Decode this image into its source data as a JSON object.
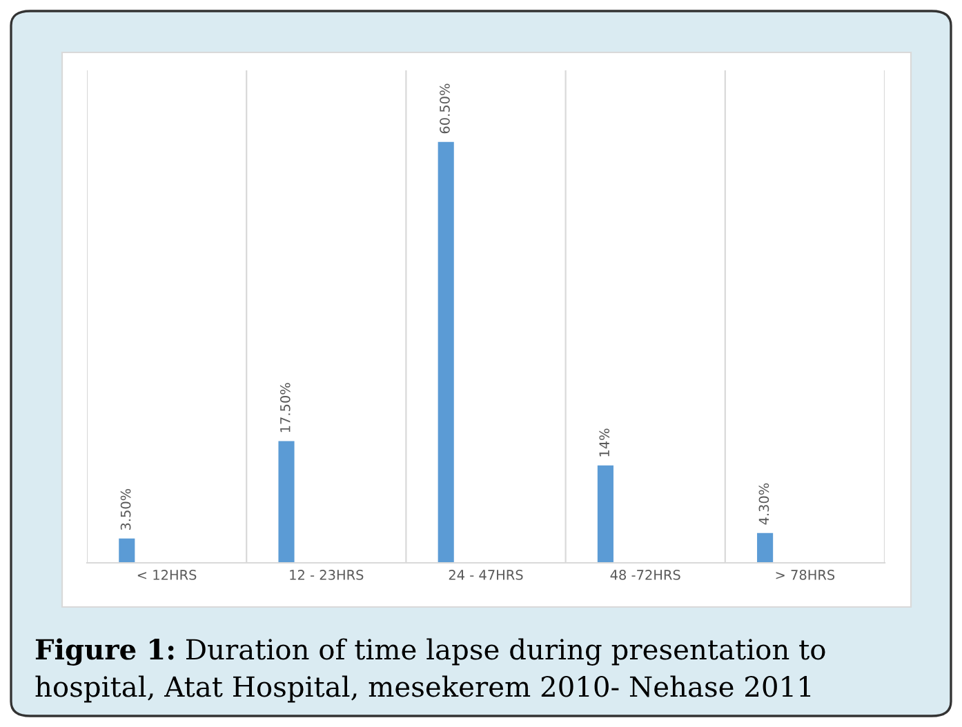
{
  "chart_data": {
    "type": "bar",
    "categories": [
      "< 12HRS",
      "12 - 23HRS",
      "24 - 47HRS",
      "48 -72HRS",
      "> 78HRS"
    ],
    "values": [
      3.5,
      17.5,
      60.5,
      14,
      4.3
    ],
    "value_labels": [
      "3.50%",
      "17.50%",
      "60.50%",
      "14%",
      "4.30%"
    ],
    "color": "#5b9bd5",
    "grid": "x",
    "annotations": [
      "Figure 1:",
      "Duration of time lapse during presentation to hospital, Atat Hospital, mesekerem 2010- Nehase 2011"
    ]
  }
}
